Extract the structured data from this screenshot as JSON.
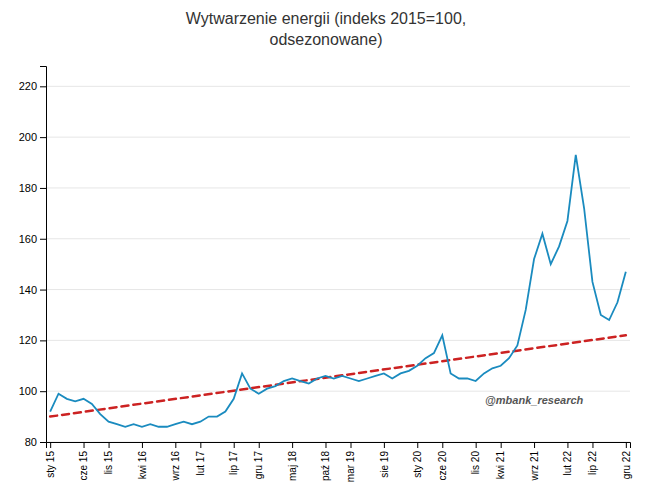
{
  "chart_data": {
    "type": "line",
    "title": "Wytwarzenie energii (indeks 2015=100,\nodsezonowane)",
    "categories": [
      "sty 15",
      null,
      null,
      null,
      "cze 15",
      null,
      null,
      "lis 15",
      null,
      null,
      null,
      "kwi 16",
      null,
      null,
      null,
      "wrz 16",
      null,
      null,
      "lut 17",
      null,
      null,
      null,
      "lip 17",
      null,
      null,
      "gru 17",
      null,
      null,
      null,
      "maj 18",
      null,
      null,
      null,
      "paź 18",
      null,
      null,
      "mar 19",
      null,
      null,
      null,
      "sie 19",
      null,
      null,
      null,
      "sty 20",
      null,
      null,
      "cze 20",
      null,
      null,
      null,
      "lis 20",
      null,
      null,
      "kwi 21",
      null,
      null,
      null,
      "wrz 21",
      null,
      null,
      null,
      "lut 22",
      null,
      null,
      "lip 22",
      null,
      null,
      null,
      "gru 22"
    ],
    "series": [
      {
        "color": "#1a8bbf",
        "line_style": "solid",
        "values": [
          92,
          99,
          97,
          96,
          97,
          95,
          91,
          88,
          87,
          86,
          87,
          86,
          87,
          86,
          86,
          87,
          88,
          87,
          88,
          90,
          90,
          92,
          97,
          107,
          101,
          99,
          101,
          102,
          104,
          105,
          104,
          103,
          105,
          106,
          105,
          106,
          105,
          104,
          105,
          106,
          107,
          105,
          107,
          108,
          110,
          113,
          115,
          122,
          107,
          105,
          105,
          104,
          107,
          109,
          110,
          113,
          118,
          132,
          152,
          162,
          150,
          157,
          167,
          193,
          172,
          143,
          130,
          128,
          135,
          147
        ]
      }
    ],
    "trend": {
      "x": [
        0,
        69
      ],
      "values": [
        90,
        122
      ],
      "color": "#cc2222",
      "line_style": "dashed"
    },
    "annotation": "@mbank_research",
    "ylim": [
      80,
      228
    ],
    "yticks": [
      80,
      100,
      120,
      140,
      160,
      180,
      200,
      220
    ],
    "grid": true
  }
}
